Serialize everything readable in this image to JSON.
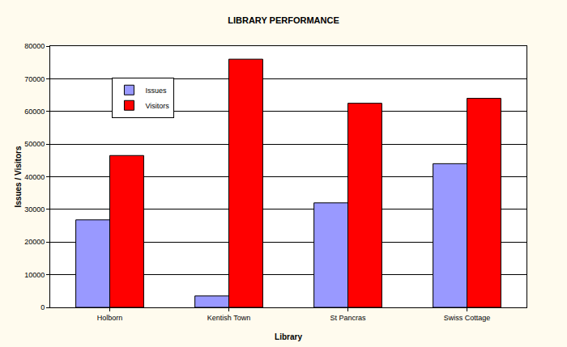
{
  "chart_data": {
    "type": "bar",
    "title": "LIBRARY PERFORMANCE",
    "x_label": "Library",
    "y_label": "Issues / Visitors",
    "categories": [
      "Holborn",
      "Kentish Town",
      "St Pancras",
      "Swiss Cottage"
    ],
    "series": [
      {
        "name": "Issues",
        "color": "#9999ff",
        "values": [
          26800,
          3500,
          32000,
          44000
        ]
      },
      {
        "name": "Visitors",
        "color": "#ff0000",
        "values": [
          46500,
          76000,
          62500,
          64000
        ]
      }
    ],
    "ylim": [
      0,
      80000
    ],
    "yticks": [
      0,
      10000,
      20000,
      30000,
      40000,
      50000,
      60000,
      70000,
      80000
    ],
    "grid": true,
    "legend": "top-left"
  }
}
